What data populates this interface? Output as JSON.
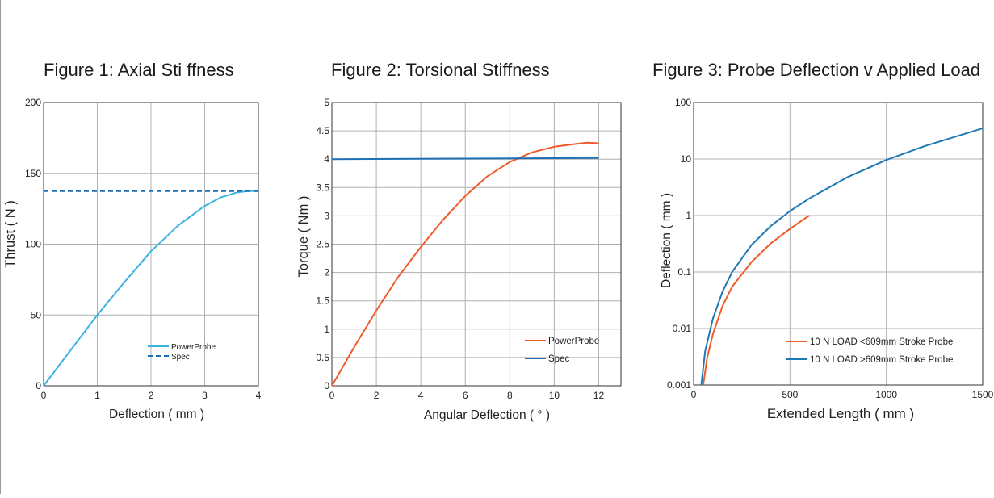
{
  "charts": [
    {
      "title": "Figure 1: Axial Sti ffness",
      "chart_data": {
        "type": "line",
        "title": "Figure 1: Axial Sti ffness",
        "xlabel": "Deflection ( mm )",
        "ylabel": "Thrust ( N )",
        "xlim": [
          0,
          4
        ],
        "ylim": [
          0,
          200
        ],
        "xticks": [
          "0",
          "1",
          "2",
          "3",
          "4"
        ],
        "yticks": [
          "0",
          "50",
          "100",
          "150",
          "200"
        ],
        "grid": true,
        "legend_position": "bottom-right",
        "series": [
          {
            "name": "PowerProbe",
            "color": "#3bb3e0",
            "dash": "solid",
            "x": [
              0,
              0.5,
              1,
              1.5,
              2,
              2.5,
              3,
              3.3,
              3.6,
              3.8,
              4.0
            ],
            "y": [
              0,
              25,
              50,
              73,
              95,
              113,
              127,
              133,
              136.5,
              137.5,
              137.5
            ]
          },
          {
            "name": "Spec",
            "color": "#1f6fb4",
            "dash": "dashed",
            "x": [
              0,
              4.05
            ],
            "y": [
              137.5,
              137.5
            ]
          }
        ]
      }
    },
    {
      "title": "Figure 2: Torsional Stiffness",
      "chart_data": {
        "type": "line",
        "title": "Figure 2: Torsional Stiffness",
        "xlabel": "Angular Deflection ( ° )",
        "ylabel": "Torque ( Nm )",
        "xlim": [
          0,
          13
        ],
        "ylim": [
          0,
          5
        ],
        "xticks": [
          "0",
          "2",
          "4",
          "6",
          "8",
          "10",
          "12"
        ],
        "yticks": [
          "0",
          "0.5",
          "1",
          "1.5",
          "2",
          "2.5",
          "3",
          "3.5",
          "4",
          "4.5",
          "5"
        ],
        "grid": true,
        "legend_position": "bottom-right",
        "series": [
          {
            "name": "PowerProbe",
            "color": "#f05a2a",
            "dash": "solid",
            "x": [
              0,
              1,
              2,
              3,
              4,
              5,
              6,
              7,
              8,
              9,
              10,
              11,
              11.5,
              12
            ],
            "y": [
              0,
              0.68,
              1.33,
              1.93,
              2.45,
              2.93,
              3.35,
              3.7,
              3.95,
              4.12,
              4.22,
              4.27,
              4.29,
              4.28
            ]
          },
          {
            "name": "Spec",
            "color": "#1f6fb4",
            "dash": "solid",
            "x": [
              0,
              12
            ],
            "y": [
              4.0,
              4.02
            ]
          }
        ]
      }
    },
    {
      "title": "Figure 3: Probe Deflection v Applied Load",
      "chart_data": {
        "type": "line",
        "title": "Figure 3: Probe Deflection v Applied Load",
        "xlabel": "Extended Length ( mm )",
        "ylabel": "Deflection ( mm )",
        "xlim": [
          0,
          1500
        ],
        "ylim": [
          0.001,
          100
        ],
        "yscale": "log",
        "xticks": [
          "0",
          "500",
          "1000",
          "1500"
        ],
        "yticks": [
          "0.001",
          "0.01",
          "0.1",
          "1",
          "10",
          "100"
        ],
        "grid": true,
        "legend_position": "bottom-right",
        "series": [
          {
            "name": "10 N LOAD <609mm Stroke Probe",
            "color": "#f05a2a",
            "dash": "solid",
            "x": [
              50,
              70,
              100,
              150,
              200,
              300,
              400,
              500,
              600
            ],
            "y": [
              0.001,
              0.003,
              0.008,
              0.025,
              0.055,
              0.15,
              0.32,
              0.58,
              1.0
            ]
          },
          {
            "name": "10 N LOAD >609mm Stroke Probe",
            "color": "#1f7ab4",
            "dash": "solid",
            "x": [
              40,
              60,
              100,
              150,
              200,
              300,
              400,
              500,
              600,
              800,
              1000,
              1200,
              1500
            ],
            "y": [
              0.001,
              0.004,
              0.015,
              0.045,
              0.1,
              0.3,
              0.65,
              1.2,
              2.0,
              4.8,
              9.6,
              17,
              35
            ]
          }
        ]
      }
    }
  ]
}
